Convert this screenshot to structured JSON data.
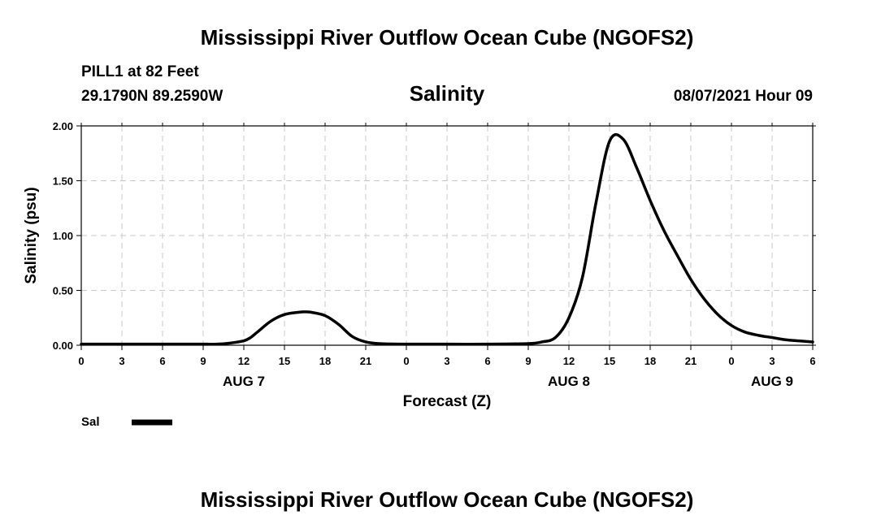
{
  "page": {
    "title_top": "Mississippi River Outflow Ocean Cube (NGOFS2)",
    "title_bottom": "Mississippi River Outflow Ocean Cube (NGOFS2)",
    "station": "PILL1 at 82 Feet",
    "coords": "29.1790N  89.2590W",
    "variable": "Salinity",
    "datetime": "08/07/2021 Hour 09"
  },
  "legend": {
    "label": "Sal",
    "color": "#000000"
  },
  "chart_data": {
    "type": "line",
    "title": "Salinity",
    "xlabel": "Forecast (Z)",
    "ylabel": "Salinity (psu)",
    "xlim": [
      0,
      54
    ],
    "ylim": [
      0,
      2.0
    ],
    "grid": true,
    "x_ticks": [
      0,
      3,
      6,
      9,
      12,
      15,
      18,
      21,
      24,
      27,
      30,
      33,
      36,
      39,
      42,
      45,
      48,
      51,
      54
    ],
    "x_tick_labels": [
      "0",
      "3",
      "6",
      "9",
      "12",
      "15",
      "18",
      "21",
      "0",
      "3",
      "6",
      "9",
      "12",
      "15",
      "18",
      "21",
      "0",
      "3",
      "6"
    ],
    "y_ticks": [
      0,
      0.5,
      1.0,
      1.5,
      2.0
    ],
    "y_tick_labels": [
      "0.00",
      "0.50",
      "1.00",
      "1.50",
      "2.00"
    ],
    "day_labels": [
      {
        "x": 12,
        "label": "AUG 7"
      },
      {
        "x": 36,
        "label": "AUG 8"
      },
      {
        "x": 51,
        "label": "AUG 9"
      }
    ],
    "series": [
      {
        "name": "Sal",
        "x": [
          0,
          3,
          6,
          9,
          10,
          11,
          12,
          12.5,
          13,
          14,
          15,
          16,
          16.5,
          17,
          18,
          19,
          20,
          21,
          22,
          24,
          27,
          30,
          33,
          34,
          35,
          36,
          37,
          38,
          39,
          40,
          41,
          42,
          43,
          44,
          45,
          46,
          47,
          48,
          49,
          50,
          51,
          52,
          53,
          54
        ],
        "y": [
          0.01,
          0.01,
          0.01,
          0.01,
          0.01,
          0.02,
          0.04,
          0.07,
          0.12,
          0.22,
          0.28,
          0.3,
          0.305,
          0.3,
          0.27,
          0.19,
          0.08,
          0.03,
          0.015,
          0.01,
          0.01,
          0.01,
          0.015,
          0.03,
          0.07,
          0.25,
          0.62,
          1.3,
          1.86,
          1.88,
          1.62,
          1.32,
          1.05,
          0.82,
          0.6,
          0.42,
          0.28,
          0.18,
          0.12,
          0.09,
          0.07,
          0.05,
          0.04,
          0.03
        ]
      }
    ]
  }
}
